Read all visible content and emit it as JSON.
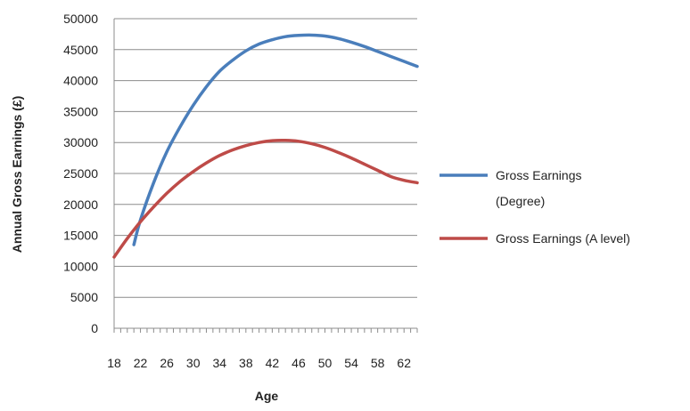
{
  "chart_data": {
    "type": "line",
    "title": "",
    "xlabel": "Age",
    "ylabel": "Annual Gross Earnings (£)",
    "xlim": [
      18,
      64
    ],
    "ylim": [
      0,
      50000
    ],
    "y_ticks": [
      0,
      5000,
      10000,
      15000,
      20000,
      25000,
      30000,
      35000,
      40000,
      45000,
      50000
    ],
    "x_ticks": [
      18,
      22,
      26,
      30,
      34,
      38,
      42,
      46,
      50,
      54,
      58,
      62
    ],
    "grid": "horizontal",
    "legend": "right",
    "series": [
      {
        "name": "Gross Earnings (Degree)",
        "name_lines": [
          "Gross Earnings",
          "(Degree)"
        ],
        "color": "#4a7ebb",
        "x": [
          21,
          22,
          24,
          26,
          28,
          30,
          32,
          34,
          36,
          38,
          40,
          42,
          44,
          46,
          48,
          50,
          52,
          54,
          56,
          58,
          60,
          62,
          64
        ],
        "y": [
          13500,
          17500,
          23500,
          28500,
          32500,
          36000,
          39000,
          41500,
          43300,
          44800,
          45900,
          46600,
          47100,
          47300,
          47350,
          47200,
          46800,
          46200,
          45500,
          44700,
          43900,
          43100,
          42300
        ]
      },
      {
        "name": "Gross Earnings (A level)",
        "name_lines": [
          "Gross Earnings (A level)"
        ],
        "color": "#be4b48",
        "x": [
          18,
          20,
          22,
          24,
          26,
          28,
          30,
          32,
          34,
          36,
          38,
          40,
          42,
          44,
          46,
          48,
          50,
          52,
          54,
          56,
          58,
          60,
          62,
          64
        ],
        "y": [
          11500,
          14500,
          17200,
          19600,
          21800,
          23700,
          25300,
          26700,
          27900,
          28800,
          29500,
          30000,
          30300,
          30350,
          30200,
          29800,
          29200,
          28400,
          27500,
          26500,
          25500,
          24500,
          23900,
          23500
        ]
      }
    ]
  }
}
